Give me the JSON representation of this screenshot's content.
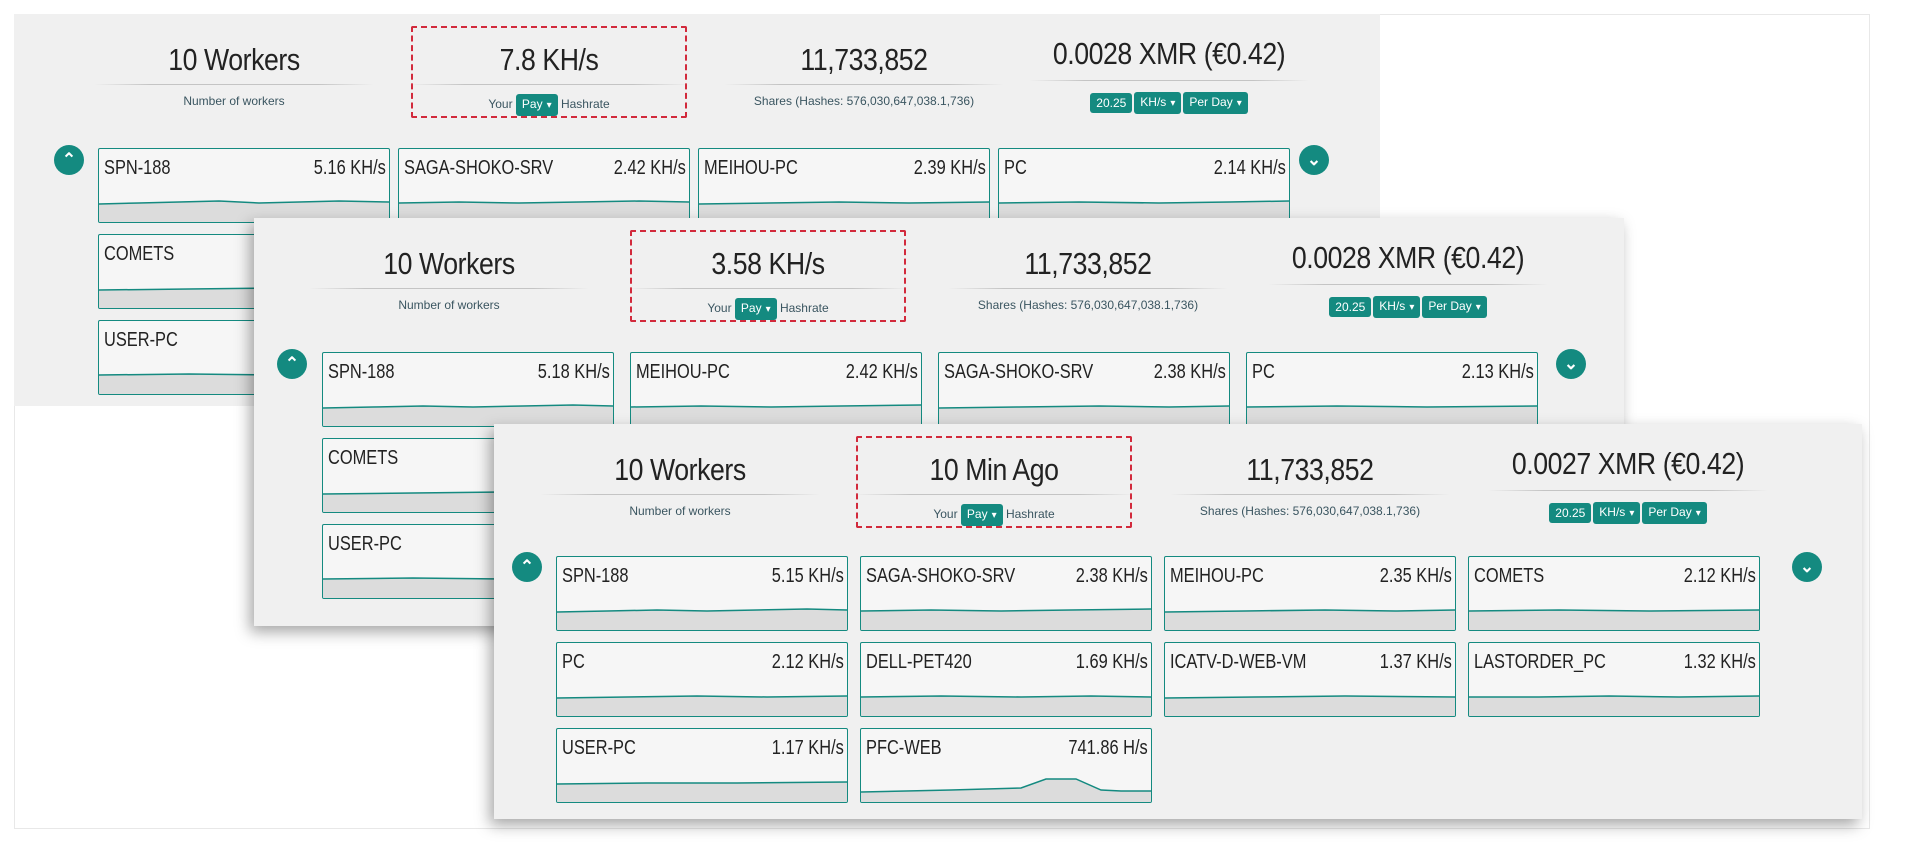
{
  "panels": [
    {
      "stats": {
        "workers": {
          "value": "10 Workers",
          "label": "Number of workers"
        },
        "hashrate": {
          "value": "7.8 KH/s",
          "prefix": "Your",
          "select": "Pay",
          "suffix": "Hashrate"
        },
        "shares": {
          "value": "11,733,852",
          "label": "Shares (Hashes: 576,030,647,038.1,736)"
        },
        "earnings": {
          "value": "0.0028 XMR (€0.42)",
          "amount": "20.25",
          "unit": "KH/s",
          "period": "Per Day"
        }
      },
      "workers": [
        {
          "name": "SPN-188",
          "rate": "5.16 KH/s"
        },
        {
          "name": "SAGA-SHOKO-SRV",
          "rate": "2.42 KH/s"
        },
        {
          "name": "MEIHOU-PC",
          "rate": "2.39 KH/s"
        },
        {
          "name": "PC",
          "rate": "2.14 KH/s"
        },
        {
          "name": "COMETS",
          "rate": ""
        },
        {
          "name": "USER-PC",
          "rate": ""
        }
      ]
    },
    {
      "stats": {
        "workers": {
          "value": "10 Workers",
          "label": "Number of workers"
        },
        "hashrate": {
          "value": "3.58 KH/s",
          "prefix": "Your",
          "select": "Pay",
          "suffix": "Hashrate"
        },
        "shares": {
          "value": "11,733,852",
          "label": "Shares (Hashes: 576,030,647,038.1,736)"
        },
        "earnings": {
          "value": "0.0028 XMR (€0.42)",
          "amount": "20.25",
          "unit": "KH/s",
          "period": "Per Day"
        }
      },
      "workers": [
        {
          "name": "SPN-188",
          "rate": "5.18 KH/s"
        },
        {
          "name": "MEIHOU-PC",
          "rate": "2.42 KH/s"
        },
        {
          "name": "SAGA-SHOKO-SRV",
          "rate": "2.38 KH/s"
        },
        {
          "name": "PC",
          "rate": "2.13 KH/s"
        },
        {
          "name": "COMETS",
          "rate": ""
        },
        {
          "name": "USER-PC",
          "rate": ""
        }
      ]
    },
    {
      "stats": {
        "workers": {
          "value": "10 Workers",
          "label": "Number of workers"
        },
        "hashrate": {
          "value": "10 Min Ago",
          "prefix": "Your",
          "select": "Pay",
          "suffix": "Hashrate"
        },
        "shares": {
          "value": "11,733,852",
          "label": "Shares (Hashes: 576,030,647,038.1,736)"
        },
        "earnings": {
          "value": "0.0027 XMR (€0.42)",
          "amount": "20.25",
          "unit": "KH/s",
          "period": "Per Day"
        }
      },
      "workers": [
        {
          "name": "SPN-188",
          "rate": "5.15 KH/s"
        },
        {
          "name": "SAGA-SHOKO-SRV",
          "rate": "2.38 KH/s"
        },
        {
          "name": "MEIHOU-PC",
          "rate": "2.35 KH/s"
        },
        {
          "name": "COMETS",
          "rate": "2.12 KH/s"
        },
        {
          "name": "PC",
          "rate": "2.12 KH/s"
        },
        {
          "name": "DELL-PET420",
          "rate": "1.69 KH/s"
        },
        {
          "name": "ICATV-D-WEB-VM",
          "rate": "1.37 KH/s"
        },
        {
          "name": "LASTORDER_PC",
          "rate": "1.32 KH/s"
        },
        {
          "name": "USER-PC",
          "rate": "1.17 KH/s"
        },
        {
          "name": "PFC-WEB",
          "rate": "741.86 H/s"
        }
      ]
    }
  ],
  "icons": {
    "collapse": "collapse-chevrons-icon",
    "expand": "chevron-down-icon",
    "dropdown": "chevron-down-icon"
  },
  "colors": {
    "accent": "#148a80",
    "highlight_dashes": "#d22a3c",
    "panel_bg": "#f0f0f0"
  }
}
